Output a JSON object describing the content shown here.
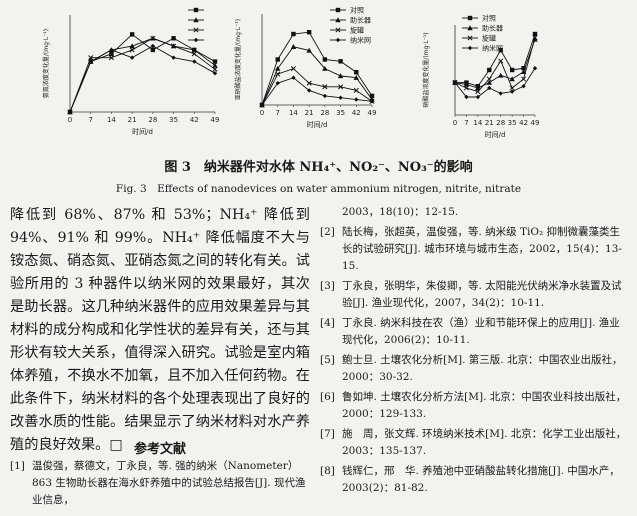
{
  "chart_data": [
    {
      "type": "line",
      "ylabel": "氨氮浓度变化量/(mg·L⁻¹)",
      "xlabel": "时间/d",
      "x": [
        0,
        7,
        14,
        21,
        28,
        35,
        42,
        49
      ],
      "xlim": [
        0,
        49
      ],
      "xticks": [
        0,
        7,
        14,
        21,
        28,
        35,
        42,
        49
      ],
      "ylim": [
        0,
        25
      ],
      "series": [
        {
          "color": "#111111",
          "values": [
            0,
            13,
            15,
            20,
            16,
            19,
            16,
            13
          ]
        },
        {
          "color": "#111111",
          "values": [
            0,
            13,
            16,
            17,
            19,
            17,
            16,
            12
          ]
        },
        {
          "color": "#111111",
          "values": [
            0,
            14,
            14,
            16,
            19,
            17,
            15,
            11
          ]
        },
        {
          "color": "#111111",
          "values": [
            0,
            13,
            16,
            14,
            17,
            14,
            13,
            10
          ]
        }
      ]
    },
    {
      "type": "line",
      "ylabel": "亚硝酸盐浓度变化量/(mg·L⁻¹)",
      "xlabel": "时间/d",
      "x": [
        0,
        7,
        14,
        21,
        28,
        35,
        42,
        49
      ],
      "xlim": [
        0,
        49
      ],
      "xticks": [
        0,
        7,
        14,
        21,
        28,
        35,
        42,
        49
      ],
      "ylim": [
        0,
        5
      ],
      "series": [
        {
          "name": "对照",
          "color": "#111111",
          "values": [
            0,
            2.5,
            3.9,
            4,
            2.5,
            2.4,
            1.8,
            0.5
          ]
        },
        {
          "name": "助长器",
          "color": "#111111",
          "values": [
            0,
            2,
            3.2,
            3,
            2,
            1.6,
            1.5,
            0.3
          ]
        },
        {
          "name": "旋罐",
          "color": "#111111",
          "values": [
            0,
            1.7,
            2,
            1.2,
            1,
            1,
            0.8,
            0.2
          ]
        },
        {
          "name": "纳米网",
          "color": "#111111",
          "values": [
            0,
            1.2,
            1.5,
            0.8,
            0.5,
            0.4,
            0.3,
            0.2
          ]
        }
      ]
    },
    {
      "type": "line",
      "ylabel": "硝酸盐浓度变化量/(mg·L⁻¹)",
      "xlabel": "时间/d",
      "x": [
        0,
        7,
        14,
        21,
        28,
        35,
        42,
        49
      ],
      "xlim": [
        0,
        49
      ],
      "xticks": [
        0,
        7,
        14,
        21,
        28,
        35,
        42,
        49
      ],
      "ylim": [
        0,
        5
      ],
      "series": [
        {
          "name": "对照",
          "color": "#111111",
          "values": [
            1.8,
            1.8,
            1.6,
            2.5,
            3.6,
            2.5,
            2.6,
            4.5
          ]
        },
        {
          "name": "助长器",
          "color": "#111111",
          "values": [
            1.8,
            1.7,
            1.5,
            1.8,
            2.2,
            2,
            2.4,
            4.2
          ]
        },
        {
          "name": "旋罐",
          "color": "#111111",
          "values": [
            1.8,
            1.5,
            1.3,
            2,
            3,
            1.5,
            2,
            4.3
          ]
        },
        {
          "name": "纳米网",
          "color": "#111111",
          "values": [
            1.8,
            1,
            1,
            1.5,
            1.2,
            1.3,
            1.6,
            2.6
          ]
        }
      ]
    }
  ],
  "caption": {
    "zh": "图 3　纳米器件对水体 NH₄⁺、NO₂⁻、NO₃⁻的影响",
    "en": "Fig. 3　Effects of nanodevices on water ammonium nitrogen, nitrite, nitrate"
  },
  "body": "降低到 68%、87% 和 53%；NH₄⁺ 降低到 94%、91% 和 99%。NH₄⁺ 降低幅度不大与铵态氮、硝态氮、亚硝态氮之间的转化有关。试验所用的 3 种器件以纳米网的效果最好，其次是助长器。这几种纳米器件的应用效果差异与其材料的成分构成和化学性状的差异有关，还与其形状有较大关系，值得深入研究。试验是室内箱体养殖，不换水不加氧，且不加入任何药物。在此条件下，纳米材料的各个处理表现出了良好的改善水质的性能。结果显示了纳米材料对水产养殖的良好效果。□",
  "references": {
    "heading": "参考文献",
    "items": [
      {
        "number": "[1]",
        "text": "温俊强，蔡德文，丁永良，等. 强的纳米（Nanometer）863 生物助长器在海水虾养殖中的试验总结报告[J]. 现代渔业信息，",
        "continuation": "2003，18(10)：12-15."
      },
      {
        "number": "[2]",
        "text": "陆长梅，张超英，温俊强，等. 纳米级 TiO₂ 抑制微囊藻类生长的试验研究[J]. 城市环境与城市生态，2002，15(4)：13-15."
      },
      {
        "number": "[3]",
        "text": "丁永良，张明华，朱俊卿，等. 太阳能光伏纳米净水装置及试验[J]. 渔业现代化，2007，34(2)：10-11."
      },
      {
        "number": "[4]",
        "text": "丁永良. 纳米科技在农（渔）业和节能环保上的应用[J]. 渔业现代化，2006(2)：10-11."
      },
      {
        "number": "[5]",
        "text": "鲍士旦. 土壤农化分析[M]. 第三版. 北京：中国农业出版社，2000：30-32."
      },
      {
        "number": "[6]",
        "text": "鲁如坤. 土壤农化分析方法[M]. 北京：中国农业科技出版社，2000：129-133."
      },
      {
        "number": "[7]",
        "text": "施　周，张文辉. 环境纳米技术[M]. 北京：化学工业出版社，2003：135-137."
      },
      {
        "number": "[8]",
        "text": "钱辉仁，邢　华. 养殖池中亚硝酸盐转化措施[J]. 中国水产，2003(2)：81-82."
      }
    ]
  }
}
